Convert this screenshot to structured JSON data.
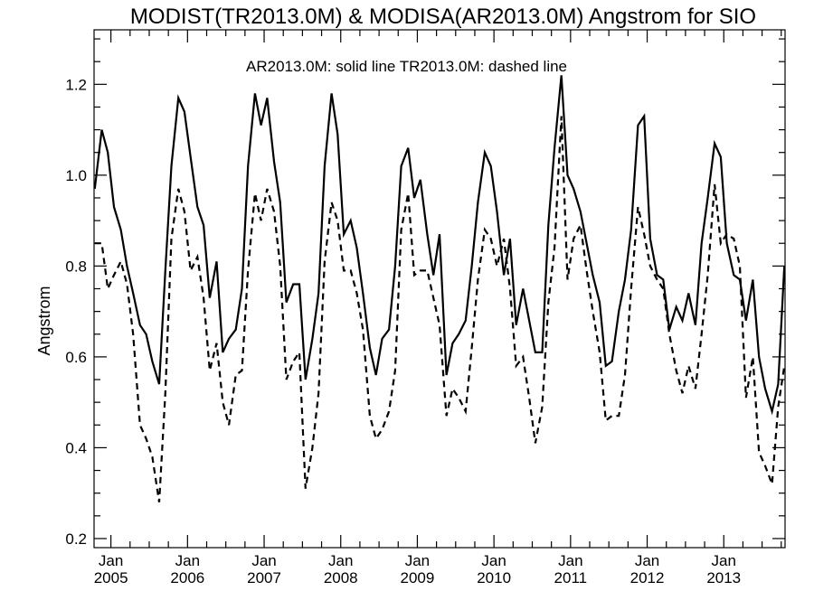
{
  "chart_data": {
    "type": "line",
    "title": "MODIST(TR2013.0M) & MODISA(AR2013.0M)  Angstrom for SIO",
    "legend_text": "AR2013.0M: solid line   TR2013.0M: dashed line",
    "ylabel": "Angstrom",
    "ylim": [
      0.18,
      1.32
    ],
    "yticks": [
      0.2,
      0.4,
      0.6,
      0.8,
      1.0,
      1.2
    ],
    "ytick_labels": [
      "0.2",
      "0.4",
      "0.6",
      "0.8",
      "1.0",
      "1.2"
    ],
    "xlim": [
      2004.78,
      2013.8
    ],
    "xticks": [
      {
        "x": 2005.0,
        "month": "Jan",
        "year": "2005"
      },
      {
        "x": 2006.0,
        "month": "Jan",
        "year": "2006"
      },
      {
        "x": 2007.0,
        "month": "Jan",
        "year": "2007"
      },
      {
        "x": 2008.0,
        "month": "Jan",
        "year": "2008"
      },
      {
        "x": 2009.0,
        "month": "Jan",
        "year": "2009"
      },
      {
        "x": 2010.0,
        "month": "Jan",
        "year": "2010"
      },
      {
        "x": 2011.0,
        "month": "Jan",
        "year": "2011"
      },
      {
        "x": 2012.0,
        "month": "Jan",
        "year": "2012"
      },
      {
        "x": 2013.0,
        "month": "Jan",
        "year": "2013"
      }
    ],
    "series": [
      {
        "name": "AR2013.0M",
        "style": "solid",
        "color": "#000000",
        "x": [
          2004.79,
          2004.88,
          2004.96,
          2005.04,
          2005.13,
          2005.21,
          2005.29,
          2005.38,
          2005.46,
          2005.54,
          2005.63,
          2005.71,
          2005.79,
          2005.88,
          2005.96,
          2006.04,
          2006.13,
          2006.21,
          2006.29,
          2006.38,
          2006.46,
          2006.54,
          2006.63,
          2006.71,
          2006.79,
          2006.88,
          2006.96,
          2007.04,
          2007.13,
          2007.21,
          2007.29,
          2007.38,
          2007.46,
          2007.54,
          2007.63,
          2007.71,
          2007.79,
          2007.88,
          2007.96,
          2008.04,
          2008.13,
          2008.21,
          2008.29,
          2008.38,
          2008.46,
          2008.54,
          2008.63,
          2008.71,
          2008.79,
          2008.88,
          2008.96,
          2009.04,
          2009.13,
          2009.21,
          2009.29,
          2009.38,
          2009.46,
          2009.54,
          2009.63,
          2009.71,
          2009.79,
          2009.88,
          2009.96,
          2010.04,
          2010.13,
          2010.21,
          2010.29,
          2010.38,
          2010.46,
          2010.54,
          2010.63,
          2010.71,
          2010.79,
          2010.88,
          2010.96,
          2011.04,
          2011.13,
          2011.21,
          2011.29,
          2011.38,
          2011.46,
          2011.54,
          2011.63,
          2011.71,
          2011.79,
          2011.88,
          2011.96,
          2012.04,
          2012.13,
          2012.21,
          2012.29,
          2012.38,
          2012.46,
          2012.54,
          2012.63,
          2012.71,
          2012.79,
          2012.88,
          2012.96,
          2013.04,
          2013.13,
          2013.21,
          2013.29,
          2013.38,
          2013.46,
          2013.54,
          2013.63,
          2013.71,
          2013.79
        ],
        "y": [
          0.97,
          1.1,
          1.05,
          0.93,
          0.88,
          0.8,
          0.74,
          0.67,
          0.65,
          0.59,
          0.54,
          0.79,
          1.02,
          1.17,
          1.14,
          1.04,
          0.93,
          0.89,
          0.73,
          0.81,
          0.61,
          0.64,
          0.66,
          0.75,
          1.02,
          1.18,
          1.11,
          1.17,
          1.03,
          0.94,
          0.72,
          0.76,
          0.76,
          0.55,
          0.64,
          0.74,
          1.02,
          1.18,
          1.09,
          0.87,
          0.9,
          0.84,
          0.74,
          0.62,
          0.56,
          0.64,
          0.66,
          0.8,
          1.02,
          1.06,
          0.95,
          0.99,
          0.87,
          0.78,
          0.87,
          0.56,
          0.63,
          0.65,
          0.68,
          0.8,
          0.94,
          1.05,
          1.02,
          0.92,
          0.78,
          0.86,
          0.67,
          0.75,
          0.68,
          0.61,
          0.61,
          0.89,
          1.06,
          1.22,
          1.0,
          0.97,
          0.92,
          0.85,
          0.78,
          0.72,
          0.58,
          0.59,
          0.7,
          0.77,
          0.88,
          1.11,
          1.13,
          0.86,
          0.78,
          0.77,
          0.66,
          0.71,
          0.68,
          0.74,
          0.67,
          0.85,
          0.95,
          1.07,
          1.04,
          0.85,
          0.78,
          0.77,
          0.68,
          0.77,
          0.6,
          0.53,
          0.48,
          0.54,
          0.8
        ]
      },
      {
        "name": "TR2013.0M",
        "style": "dashed",
        "color": "#000000",
        "x": [
          2004.79,
          2004.88,
          2004.96,
          2005.04,
          2005.13,
          2005.21,
          2005.29,
          2005.38,
          2005.46,
          2005.54,
          2005.63,
          2005.71,
          2005.79,
          2005.88,
          2005.96,
          2006.04,
          2006.13,
          2006.21,
          2006.29,
          2006.38,
          2006.46,
          2006.54,
          2006.63,
          2006.71,
          2006.79,
          2006.88,
          2006.96,
          2007.04,
          2007.13,
          2007.21,
          2007.29,
          2007.38,
          2007.46,
          2007.54,
          2007.63,
          2007.71,
          2007.79,
          2007.88,
          2007.96,
          2008.04,
          2008.13,
          2008.21,
          2008.29,
          2008.38,
          2008.46,
          2008.54,
          2008.63,
          2008.71,
          2008.79,
          2008.88,
          2008.96,
          2009.04,
          2009.13,
          2009.21,
          2009.29,
          2009.38,
          2009.46,
          2009.54,
          2009.63,
          2009.71,
          2009.79,
          2009.88,
          2009.96,
          2010.04,
          2010.13,
          2010.21,
          2010.29,
          2010.38,
          2010.46,
          2010.54,
          2010.63,
          2010.71,
          2010.79,
          2010.88,
          2010.96,
          2011.04,
          2011.13,
          2011.21,
          2011.29,
          2011.38,
          2011.46,
          2011.54,
          2011.63,
          2011.71,
          2011.79,
          2011.88,
          2011.96,
          2012.04,
          2012.13,
          2012.21,
          2012.29,
          2012.38,
          2012.46,
          2012.54,
          2012.63,
          2012.71,
          2012.79,
          2012.88,
          2012.96,
          2013.04,
          2013.13,
          2013.21,
          2013.29,
          2013.38,
          2013.46,
          2013.54,
          2013.63,
          2013.71,
          2013.79
        ],
        "y": [
          0.85,
          0.85,
          0.75,
          0.78,
          0.81,
          0.76,
          0.65,
          0.45,
          0.42,
          0.38,
          0.28,
          0.52,
          0.86,
          0.97,
          0.92,
          0.79,
          0.82,
          0.73,
          0.57,
          0.63,
          0.5,
          0.45,
          0.56,
          0.57,
          0.79,
          0.96,
          0.9,
          0.97,
          0.92,
          0.8,
          0.55,
          0.59,
          0.61,
          0.31,
          0.4,
          0.52,
          0.81,
          0.94,
          0.9,
          0.79,
          0.79,
          0.74,
          0.66,
          0.47,
          0.42,
          0.44,
          0.48,
          0.57,
          0.88,
          0.96,
          0.78,
          0.79,
          0.79,
          0.73,
          0.67,
          0.47,
          0.53,
          0.51,
          0.48,
          0.62,
          0.77,
          0.88,
          0.86,
          0.8,
          0.86,
          0.75,
          0.58,
          0.6,
          0.51,
          0.41,
          0.49,
          0.72,
          0.84,
          1.13,
          0.77,
          0.86,
          0.89,
          0.79,
          0.7,
          0.61,
          0.46,
          0.47,
          0.47,
          0.56,
          0.75,
          0.93,
          0.87,
          0.8,
          0.77,
          0.75,
          0.65,
          0.57,
          0.52,
          0.58,
          0.53,
          0.65,
          0.78,
          0.98,
          0.85,
          0.87,
          0.86,
          0.8,
          0.51,
          0.6,
          0.39,
          0.36,
          0.32,
          0.49,
          0.58
        ]
      }
    ]
  }
}
